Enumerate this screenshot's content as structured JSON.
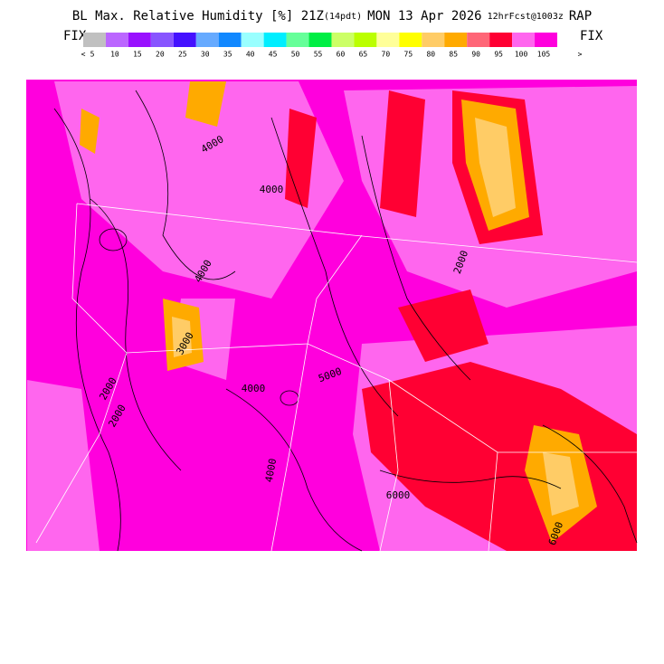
{
  "header": {
    "title_parts": [
      "BL Max. Relative Humidity [%] 21Z",
      "(14pdt)",
      "MON 13 Apr 2026",
      "12hrFcst@1003z",
      "RAP"
    ]
  },
  "legend": {
    "left": "FIX",
    "right": "FIX",
    "colors": [
      "#c0c0c0",
      "#bb66ff",
      "#9911ff",
      "#8855ff",
      "#4411ff",
      "#66aaff",
      "#1188ff",
      "#99ffff",
      "#00eeff",
      "#66ff99",
      "#00ee44",
      "#ccff66",
      "#bbff00",
      "#ffff99",
      "#ffff00",
      "#ffcc66",
      "#ffaa00",
      "#ff6677",
      "#ff0033",
      "#ff66ee",
      "#ff00dd"
    ],
    "labels": [
      "<",
      "5",
      "10",
      "15",
      "20",
      "25",
      "30",
      "35",
      "40",
      "45",
      "50",
      "55",
      "60",
      "65",
      "70",
      "75",
      "80",
      "85",
      "90",
      "95",
      "100",
      "105",
      ">"
    ]
  },
  "map": {
    "contour_labels": [
      "4000",
      "4000",
      "2000",
      "2000",
      "4000",
      "4000",
      "3000",
      "5000",
      "6000",
      "6000",
      "2000",
      "4000"
    ]
  }
}
